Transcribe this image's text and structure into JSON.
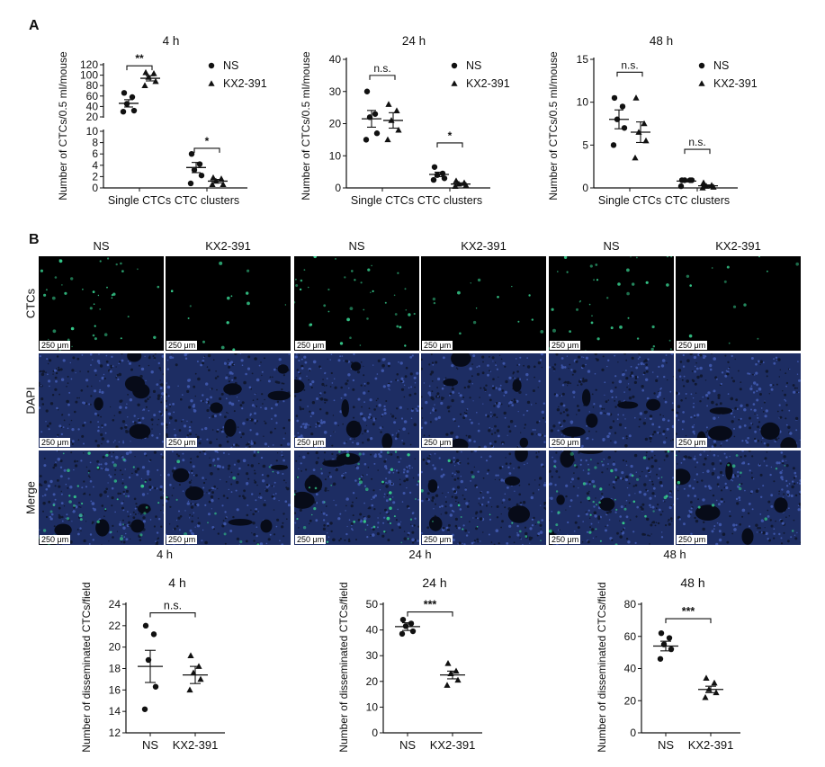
{
  "panel_a_label": "A",
  "panel_b_label": "B",
  "legend": {
    "ns": "NS",
    "kx": "KX2-391"
  },
  "chart_data": [
    {
      "type": "scatter",
      "title": "4 h",
      "ylabel": "Number of CTCs/0.5 ml/mouse",
      "categories": [
        "Single CTCs",
        "CTC clusters"
      ],
      "broken_axis": true,
      "upper_ylim": [
        20,
        120
      ],
      "upper_ticks": [
        20,
        40,
        60,
        80,
        100,
        120
      ],
      "lower_ylim": [
        0,
        10
      ],
      "lower_ticks": [
        0,
        2,
        4,
        6,
        8,
        10
      ],
      "series": [
        {
          "name": "NS",
          "marker": "circle",
          "points": [
            [
              0,
              [
                66,
                58,
                45,
                32,
                30
              ]
            ],
            [
              1,
              [
                6,
                4.2,
                3.2,
                2.2,
                0.8
              ]
            ]
          ],
          "means": [
            46,
            3.6
          ],
          "sems": [
            7,
            0.9
          ]
        },
        {
          "name": "KX2-391",
          "marker": "triangle",
          "points": [
            [
              0,
              [
                105,
                103,
                96,
                88,
                80
              ]
            ],
            [
              1,
              [
                1.8,
                1.6,
                1.2,
                0.6,
                0.6
              ]
            ]
          ],
          "means": [
            94,
            1.2
          ],
          "sems": [
            5,
            0.3
          ]
        }
      ],
      "brackets": [
        {
          "group": 0,
          "text": "**",
          "y": 118
        },
        {
          "group": 1,
          "text": "*",
          "y": 7
        }
      ]
    },
    {
      "type": "scatter",
      "title": "24 h",
      "ylabel": "Number of CTCs/0.5 ml/mouse",
      "categories": [
        "Single CTCs",
        "CTC clusters"
      ],
      "ylim": [
        0,
        40
      ],
      "ticks": [
        0,
        10,
        20,
        30,
        40
      ],
      "series": [
        {
          "name": "NS",
          "marker": "circle",
          "points": [
            [
              0,
              [
                30,
                23,
                22,
                17,
                15
              ]
            ],
            [
              1,
              [
                6.5,
                4.5,
                4,
                3,
                2.5
              ]
            ]
          ],
          "means": [
            21.5,
            4.2
          ],
          "sems": [
            2.6,
            0.7
          ]
        },
        {
          "name": "KX2-391",
          "marker": "triangle",
          "points": [
            [
              0,
              [
                26,
                24,
                21,
                18,
                15
              ]
            ],
            [
              1,
              [
                2.2,
                1.6,
                1.2,
                0.8,
                0.5
              ]
            ]
          ],
          "means": [
            21,
            1.2
          ],
          "sems": [
            2.4,
            0.4
          ]
        }
      ],
      "brackets": [
        {
          "group": 0,
          "text": "n.s.",
          "y": 35
        },
        {
          "group": 1,
          "text": "*",
          "y": 14
        }
      ]
    },
    {
      "type": "scatter",
      "title": "48 h",
      "ylabel": "Number of CTCs/0.5 ml/mouse",
      "categories": [
        "Single CTCs",
        "CTC clusters"
      ],
      "ylim": [
        0,
        15
      ],
      "ticks": [
        0,
        5,
        10,
        15
      ],
      "series": [
        {
          "name": "NS",
          "marker": "circle",
          "points": [
            [
              0,
              [
                10.5,
                9.5,
                8,
                7,
                5
              ]
            ],
            [
              1,
              [
                0.9,
                0.9,
                0.9,
                0.9,
                0.2
              ]
            ]
          ],
          "means": [
            8,
            0.8
          ],
          "sems": [
            1.1,
            0.1
          ]
        },
        {
          "name": "KX2-391",
          "marker": "triangle",
          "points": [
            [
              0,
              [
                10.5,
                7.5,
                6.5,
                5.5,
                3.5
              ]
            ],
            [
              1,
              [
                0.6,
                0.3,
                0.2,
                0.1,
                0
              ]
            ]
          ],
          "means": [
            6.5,
            0.25
          ],
          "sems": [
            1.2,
            0.1
          ]
        }
      ],
      "brackets": [
        {
          "group": 0,
          "text": "n.s.",
          "y": 13.5
        },
        {
          "group": 1,
          "text": "n.s.",
          "y": 4.5
        }
      ]
    },
    {
      "type": "scatter",
      "title": "4 h",
      "ylabel": "Number of disseminated CTCs/field",
      "categories": [
        "NS",
        "KX2-391"
      ],
      "ylim": [
        12,
        24
      ],
      "ticks": [
        12,
        14,
        16,
        18,
        20,
        22,
        24
      ],
      "series": [
        {
          "name": "NS",
          "marker": "circle",
          "values": [
            22,
            21.2,
            18.8,
            16.3,
            14.2
          ],
          "mean": 18.2,
          "sem": 1.5
        },
        {
          "name": "KX2-391",
          "marker": "triangle",
          "values": [
            19.2,
            18.2,
            17.6,
            17.0,
            16.0
          ],
          "mean": 17.4,
          "sem": 0.8
        }
      ],
      "bracket": {
        "text": "n.s.",
        "y": 23.2
      }
    },
    {
      "type": "scatter",
      "title": "24 h",
      "ylabel": "Number of disseminated CTCs/field",
      "categories": [
        "NS",
        "KX2-391"
      ],
      "ylim": [
        0,
        50
      ],
      "ticks": [
        0,
        10,
        20,
        30,
        40,
        50
      ],
      "series": [
        {
          "name": "NS",
          "marker": "circle",
          "values": [
            44,
            42.5,
            41.5,
            39.5,
            38.5
          ],
          "mean": 41.3,
          "sem": 1.5
        },
        {
          "name": "KX2-391",
          "marker": "triangle",
          "values": [
            27,
            24,
            23,
            20.5,
            18.5
          ],
          "mean": 22.5,
          "sem": 1.5
        }
      ],
      "bracket": {
        "text": "***",
        "y": 47
      }
    },
    {
      "type": "scatter",
      "title": "48 h",
      "ylabel": "Number of disseminated CTCs/field",
      "categories": [
        "NS",
        "KX2-391"
      ],
      "ylim": [
        0,
        80
      ],
      "ticks": [
        0,
        20,
        40,
        60,
        80
      ],
      "series": [
        {
          "name": "NS",
          "marker": "circle",
          "values": [
            62,
            59,
            55,
            52,
            46
          ],
          "mean": 54,
          "sem": 3
        },
        {
          "name": "KX2-391",
          "marker": "triangle",
          "values": [
            34,
            31,
            27,
            25,
            22
          ],
          "mean": 27,
          "sem": 2
        }
      ],
      "bracket": {
        "text": "***",
        "y": 71
      }
    }
  ],
  "micrographs": {
    "col_headers": [
      "NS",
      "KX2-391",
      "NS",
      "KX2-391",
      "NS",
      "KX2-391"
    ],
    "row_labels": [
      "CTCs",
      "DAPI",
      "Merge"
    ],
    "scale_bar": "250 μm",
    "time_labels": [
      "4 h",
      "24 h",
      "48 h"
    ],
    "colors": {
      "ctc": "#35c98a",
      "dapi": "#1d2d63",
      "background": "#000000"
    }
  }
}
